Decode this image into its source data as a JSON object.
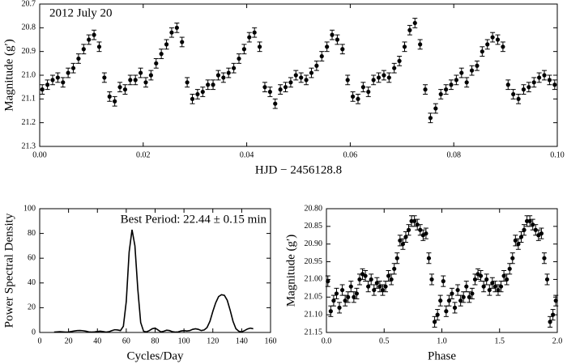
{
  "chart_data": [
    {
      "type": "scatter",
      "annotation": "2012 July 20",
      "xlabel": "HJD − 2456128.8",
      "ylabel": "Magnitude (g′)",
      "color": "#000000",
      "invert_y": true,
      "yerr": 0.02,
      "x": [
        0.0005,
        0.0015,
        0.0025,
        0.0035,
        0.0045,
        0.0055,
        0.0065,
        0.0075,
        0.0085,
        0.0095,
        0.0105,
        0.0115,
        0.0125,
        0.0135,
        0.0145,
        0.0155,
        0.0165,
        0.0175,
        0.0185,
        0.0195,
        0.0205,
        0.0215,
        0.0225,
        0.0235,
        0.0245,
        0.0255,
        0.0265,
        0.0275,
        0.0285,
        0.0295,
        0.0305,
        0.0315,
        0.0325,
        0.0335,
        0.0345,
        0.0355,
        0.0365,
        0.0375,
        0.0385,
        0.0395,
        0.0405,
        0.0415,
        0.0425,
        0.0435,
        0.0445,
        0.0455,
        0.0465,
        0.0475,
        0.0485,
        0.0495,
        0.0505,
        0.0515,
        0.0525,
        0.0535,
        0.0545,
        0.0555,
        0.0565,
        0.0575,
        0.0585,
        0.0595,
        0.0605,
        0.0615,
        0.0625,
        0.0635,
        0.0645,
        0.0655,
        0.0665,
        0.0675,
        0.0685,
        0.0695,
        0.0705,
        0.0715,
        0.0725,
        0.0735,
        0.0745,
        0.0755,
        0.0765,
        0.0775,
        0.0785,
        0.0795,
        0.0805,
        0.0815,
        0.0825,
        0.0835,
        0.0845,
        0.0855,
        0.0865,
        0.0875,
        0.0885,
        0.0895,
        0.0905,
        0.0915,
        0.0925,
        0.0935,
        0.0945,
        0.0955,
        0.0965,
        0.0975,
        0.0985,
        0.0995
      ],
      "values": [
        21.06,
        21.04,
        21.02,
        21.01,
        21.03,
        20.99,
        20.97,
        20.93,
        20.89,
        20.85,
        20.83,
        20.88,
        21.01,
        21.09,
        21.11,
        21.05,
        21.06,
        21.02,
        21.02,
        20.99,
        21.03,
        21.0,
        20.95,
        20.91,
        20.87,
        20.82,
        20.8,
        20.86,
        21.03,
        21.1,
        21.08,
        21.07,
        21.04,
        21.04,
        21.0,
        21.01,
        20.99,
        20.97,
        20.93,
        20.89,
        20.84,
        20.82,
        20.88,
        21.05,
        21.07,
        21.12,
        21.06,
        21.05,
        21.03,
        21.0,
        21.01,
        21.02,
        20.99,
        20.96,
        20.92,
        20.88,
        20.83,
        20.85,
        20.89,
        21.02,
        21.09,
        21.1,
        21.05,
        21.07,
        21.02,
        21.01,
        21.0,
        21.01,
        20.97,
        20.94,
        20.88,
        20.81,
        20.78,
        20.87,
        21.06,
        21.18,
        21.14,
        21.08,
        21.06,
        21.04,
        21.02,
        20.99,
        21.03,
        20.98,
        20.96,
        20.9,
        20.87,
        20.84,
        20.85,
        20.88,
        21.04,
        21.08,
        21.1,
        21.06,
        21.05,
        21.03,
        21.01,
        21.0,
        21.02,
        21.04
      ],
      "xlim": [
        0,
        0.1
      ],
      "xticks": [
        {
          "value": 0,
          "label": "0.00"
        },
        {
          "value": 0.02,
          "label": "0.02"
        },
        {
          "value": 0.04,
          "label": "0.04"
        },
        {
          "value": 0.06,
          "label": "0.06"
        },
        {
          "value": 0.08,
          "label": "0.08"
        },
        {
          "value": 0.1,
          "label": "0.10"
        }
      ],
      "ylim": [
        20.7,
        21.3
      ],
      "yticks": [
        20.7,
        20.8,
        20.9,
        {
          "value": 21,
          "label": "21.0"
        },
        21.1,
        21.2,
        21.3
      ]
    },
    {
      "type": "line",
      "annotation": "Best Period: 22.44 ± 0.15 min",
      "xlabel": "Cycles/Day",
      "ylabel": "Power Spectral Density",
      "color": "#000000",
      "x": [
        10,
        12,
        14,
        16,
        18,
        20,
        22,
        24,
        26,
        28,
        30,
        32,
        34,
        36,
        38,
        40,
        42,
        44,
        46,
        48,
        50,
        52,
        54,
        56,
        58,
        60,
        62,
        64,
        66,
        68,
        70,
        72,
        74,
        76,
        78,
        80,
        82,
        84,
        86,
        88,
        90,
        92,
        94,
        96,
        98,
        100,
        102,
        104,
        106,
        108,
        110,
        112,
        114,
        116,
        118,
        120,
        122,
        124,
        126,
        128,
        130,
        132,
        134,
        136,
        138,
        140,
        142,
        144,
        146,
        148
      ],
      "values": [
        0.3,
        0.5,
        0.6,
        0.5,
        0.3,
        0.4,
        0.8,
        1.2,
        1.5,
        1.6,
        1.4,
        1.0,
        0.5,
        0.3,
        0.5,
        0.8,
        1.0,
        0.7,
        0.3,
        0.6,
        1.5,
        2.2,
        2.0,
        1.5,
        5,
        25,
        65,
        83,
        70,
        35,
        8,
        1,
        0.5,
        1.5,
        3,
        3.5,
        2,
        0.5,
        1,
        1.8,
        1.5,
        0.6,
        0.3,
        0.5,
        1.2,
        1.5,
        1.2,
        1.5,
        2.5,
        3,
        2.5,
        1.5,
        2,
        4,
        9,
        17,
        24,
        29,
        30.5,
        30,
        26,
        18,
        9,
        3,
        1,
        0.5,
        1.5,
        2.8,
        3.5,
        3
      ],
      "xlim": [
        0,
        160
      ],
      "xticks": [
        0,
        20,
        40,
        60,
        80,
        100,
        120,
        140,
        160
      ],
      "ylim": [
        0,
        100
      ],
      "yticks": [
        0,
        20,
        40,
        60,
        80,
        100
      ]
    },
    {
      "type": "scatter",
      "xlabel": "Phase",
      "ylabel": "Magnitude (g′)",
      "color": "#000000",
      "invert_y": true,
      "yerr": 0.015,
      "x": [
        0.0125,
        0.0375,
        0.0625,
        0.0875,
        0.1125,
        0.1375,
        0.1625,
        0.1875,
        0.2125,
        0.2375,
        0.2625,
        0.2875,
        0.3125,
        0.3375,
        0.3625,
        0.3875,
        0.4125,
        0.4375,
        0.4625,
        0.4875,
        0.5125,
        0.5375,
        0.5625,
        0.5875,
        0.6125,
        0.6375,
        0.6625,
        0.6875,
        0.7125,
        0.7375,
        0.7625,
        0.7875,
        0.8125,
        0.8375,
        0.8625,
        0.8875,
        0.9125,
        0.9375,
        0.9625,
        0.9875,
        1.0125,
        1.0375,
        1.0625,
        1.0875,
        1.1125,
        1.1375,
        1.1625,
        1.1875,
        1.2125,
        1.2375,
        1.2625,
        1.2875,
        1.3125,
        1.3375,
        1.3625,
        1.3875,
        1.4125,
        1.4375,
        1.4625,
        1.4875,
        1.5125,
        1.5375,
        1.5625,
        1.5875,
        1.6125,
        1.6375,
        1.6625,
        1.6875,
        1.7125,
        1.7375,
        1.7625,
        1.7875,
        1.8125,
        1.8375,
        1.8625,
        1.8875,
        1.9125,
        1.9375,
        1.9625,
        1.9875
      ],
      "values": [
        21.005,
        21.09,
        21.06,
        21.04,
        21.08,
        21.03,
        21.06,
        21.05,
        21.02,
        21.05,
        21.04,
        21.0,
        20.985,
        20.99,
        21.02,
        21.0,
        21.03,
        21.01,
        21.02,
        21.03,
        21.02,
        20.99,
        21.0,
        20.97,
        20.94,
        20.89,
        20.9,
        20.88,
        20.86,
        20.835,
        20.835,
        20.845,
        20.86,
        20.875,
        20.87,
        20.94,
        21.0,
        21.12,
        21.1,
        21.06,
        21.005,
        21.09,
        21.06,
        21.04,
        21.08,
        21.03,
        21.06,
        21.05,
        21.02,
        21.05,
        21.04,
        21.0,
        20.985,
        20.99,
        21.02,
        21.0,
        21.03,
        21.01,
        21.02,
        21.03,
        21.02,
        20.99,
        21.0,
        20.97,
        20.94,
        20.89,
        20.9,
        20.88,
        20.86,
        20.835,
        20.835,
        20.845,
        20.86,
        20.875,
        20.87,
        20.94,
        21.0,
        21.12,
        21.1,
        21.06
      ],
      "xlim": [
        0,
        2
      ],
      "xticks": [
        {
          "value": 0,
          "label": "0.0"
        },
        0.5,
        {
          "value": 1,
          "label": "1.0"
        },
        1.5,
        {
          "value": 2,
          "label": "2.0"
        }
      ],
      "ylim": [
        20.8,
        21.15
      ],
      "yticks": [
        {
          "value": 20.8,
          "label": "20.80"
        },
        20.85,
        {
          "value": 20.9,
          "label": "20.90"
        },
        20.95,
        {
          "value": 21,
          "label": "21.00"
        },
        21.05,
        {
          "value": 21.1,
          "label": "21.10"
        },
        21.15
      ]
    }
  ]
}
